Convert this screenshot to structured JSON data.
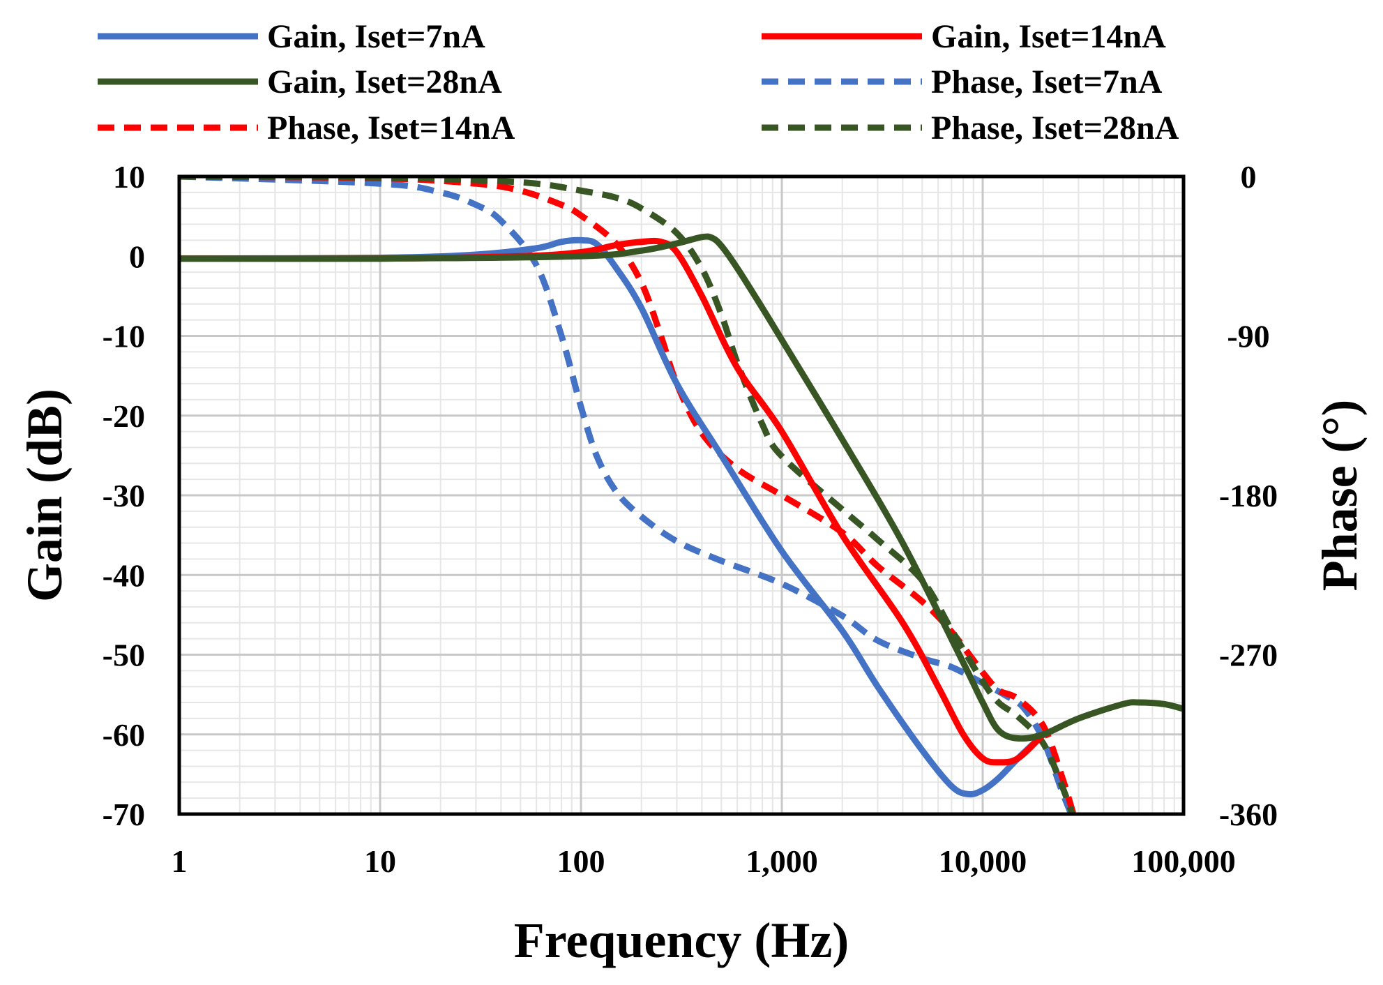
{
  "chart_data": {
    "type": "line",
    "title": "",
    "xlabel": "Frequency (Hz)",
    "ylabel": "Gain (dB)",
    "y2label": "Phase (°)",
    "xscale": "log",
    "xlim": [
      1,
      100000
    ],
    "ylim": [
      -70,
      10
    ],
    "y2lim": [
      -360,
      0
    ],
    "grid": true,
    "legend_position": "top",
    "x_tick_labels": [
      "1",
      "10",
      "100",
      "1,000",
      "10,000",
      "100,000"
    ],
    "y_tick_labels": [
      "10",
      "0",
      "-10",
      "-20",
      "-30",
      "-40",
      "-50",
      "-60",
      "-70"
    ],
    "y2_tick_labels": [
      "0",
      "-90",
      "-180",
      "-270",
      "-360"
    ],
    "series": [
      {
        "name": "Gain, Iset=7nA",
        "axis": "gain",
        "color": "#4472C4",
        "dash": false,
        "x": [
          1,
          10,
          30,
          60,
          80,
          100,
          120,
          150,
          200,
          300,
          500,
          1000,
          2000,
          3000,
          5000,
          7000,
          8500,
          10000,
          12000,
          15000,
          20000
        ],
        "y": [
          -0.3,
          -0.2,
          0.2,
          1.0,
          1.8,
          2.0,
          1.5,
          -1.5,
          -6.5,
          -16,
          -25,
          -37,
          -47,
          -54,
          -62,
          -66.5,
          -67.5,
          -67,
          -65.5,
          -63,
          -60
        ]
      },
      {
        "name": "Gain, Iset=14nA",
        "axis": "gain",
        "color": "#FF0000",
        "dash": false,
        "x": [
          1,
          10,
          50,
          100,
          150,
          200,
          250,
          300,
          400,
          600,
          1000,
          2000,
          4000,
          6000,
          8000,
          10000,
          12000,
          15000,
          20000
        ],
        "y": [
          -0.3,
          -0.3,
          0,
          0.5,
          1.4,
          1.8,
          1.8,
          0.5,
          -5,
          -14,
          -22,
          -35,
          -46,
          -54,
          -60,
          -63,
          -63.5,
          -63,
          -60
        ]
      },
      {
        "name": "Gain, Iset=28nA",
        "axis": "gain",
        "color": "#375623",
        "dash": false,
        "x": [
          1,
          10,
          100,
          200,
          300,
          400,
          450,
          500,
          600,
          800,
          1000,
          2000,
          4000,
          8000,
          10000,
          12000,
          15000,
          20000,
          30000,
          50000,
          60000,
          80000,
          100000
        ],
        "y": [
          -0.3,
          -0.3,
          0,
          0.7,
          1.6,
          2.4,
          2.3,
          1.3,
          -1.5,
          -6.5,
          -10.5,
          -23,
          -36,
          -51,
          -56,
          -59.5,
          -60.5,
          -60,
          -58,
          -56.2,
          -56,
          -56.2,
          -56.8
        ]
      },
      {
        "name": "Phase, Iset=7nA",
        "axis": "phase",
        "color": "#4472C4",
        "dash": true,
        "x": [
          1,
          10,
          20,
          30,
          40,
          60,
          80,
          100,
          120,
          150,
          200,
          300,
          500,
          1000,
          2000,
          3000,
          5000,
          7000,
          10000,
          13000,
          16000,
          20000,
          25000,
          30000
        ],
        "y": [
          0,
          -4,
          -9,
          -16,
          -25,
          -50,
          -90,
          -130,
          -158,
          -178,
          -192,
          -206,
          -217,
          -230,
          -248,
          -262,
          -272,
          -277,
          -286,
          -293,
          -300,
          -318,
          -348,
          -370
        ]
      },
      {
        "name": "Phase, Iset=14nA",
        "axis": "phase",
        "color": "#FF0000",
        "dash": true,
        "x": [
          1,
          10,
          30,
          50,
          80,
          100,
          150,
          200,
          250,
          300,
          400,
          600,
          1000,
          2000,
          3000,
          5000,
          7000,
          10000,
          12000,
          15000,
          20000,
          25000,
          30000
        ],
        "y": [
          0,
          -1,
          -4,
          -8,
          -16,
          -22,
          -38,
          -60,
          -90,
          -117,
          -145,
          -165,
          -180,
          -201,
          -220,
          -240,
          -257,
          -280,
          -290,
          -295,
          -310,
          -340,
          -370
        ]
      },
      {
        "name": "Phase, Iset=28nA",
        "axis": "phase",
        "color": "#375623",
        "dash": true,
        "x": [
          1,
          10,
          30,
          60,
          100,
          150,
          200,
          300,
          400,
          500,
          600,
          800,
          1000,
          2000,
          3000,
          5000,
          7000,
          10000,
          12000,
          15000,
          20000,
          25000,
          30000
        ],
        "y": [
          0,
          -0.5,
          -2,
          -4,
          -8,
          -12,
          -18,
          -32,
          -52,
          -78,
          -105,
          -140,
          -158,
          -188,
          -205,
          -228,
          -256,
          -285,
          -297,
          -305,
          -320,
          -345,
          -370
        ]
      }
    ]
  }
}
